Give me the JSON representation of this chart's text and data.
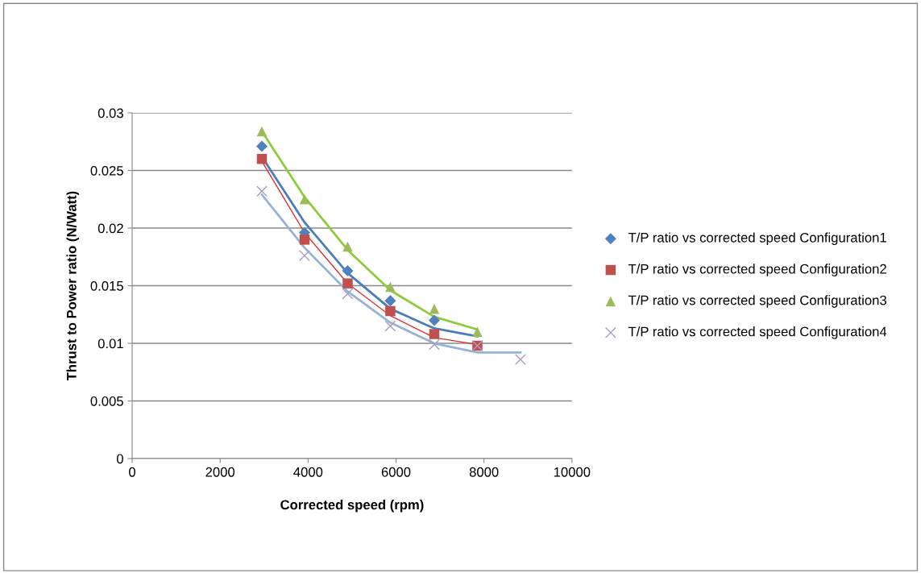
{
  "chart_data": {
    "type": "scatter",
    "xlabel": "Corrected speed (rpm)",
    "ylabel": "Thrust to Power ratio (N/Watt)",
    "x": [
      2950,
      3920,
      4900,
      5870,
      6870,
      7850
    ],
    "xlim": [
      0,
      10000
    ],
    "xticks": [
      0,
      2000,
      4000,
      6000,
      8000,
      10000
    ],
    "ylim": [
      0,
      0.03
    ],
    "yticks": [
      0,
      0.005,
      0.01,
      0.015,
      0.02,
      0.025,
      0.03
    ],
    "grid": "y",
    "legend": "right",
    "series": [
      {
        "name": "T/P ratio vs corrected speed Configuration1",
        "color": "#4f81bd",
        "marker": "diamond",
        "values": [
          0.0271,
          0.0196,
          0.0163,
          0.0137,
          0.012,
          null
        ]
      },
      {
        "name": "T/P ratio vs corrected speed Configuration2",
        "color": "#c0504d",
        "marker": "square",
        "values": [
          0.026,
          0.019,
          0.0152,
          0.0128,
          0.0108,
          0.0098
        ]
      },
      {
        "name": "T/P ratio vs corrected speed Configuration3",
        "color": "#9bbb59",
        "marker": "triangle",
        "values": [
          0.0284,
          0.0225,
          0.0184,
          0.0149,
          0.013,
          0.011
        ]
      },
      {
        "name": "T/P ratio vs corrected speed Configuration4",
        "color": "#a99bc6",
        "marker": "cross",
        "x": [
          2950,
          3920,
          4900,
          5870,
          6870,
          7850,
          8830
        ],
        "values": [
          0.0232,
          0.0176,
          0.0143,
          0.0115,
          0.0099,
          0.0098,
          0.0086
        ]
      },
      {
        "type": "line",
        "color": "#4a7ebb",
        "marker": "none",
        "values": [
          0.0262,
          0.0205,
          0.0161,
          0.013,
          0.0113,
          0.0106
        ]
      },
      {
        "type": "line",
        "color": "#e03030",
        "marker": "none",
        "values": [
          0.0258,
          0.0196,
          0.0152,
          0.0124,
          0.0105,
          0.0099
        ]
      },
      {
        "type": "line",
        "color": "#8ccc3c",
        "marker": "none",
        "values": [
          0.0284,
          0.0227,
          0.0181,
          0.0146,
          0.0123,
          0.0112
        ]
      },
      {
        "type": "line",
        "color": "#95b3d7",
        "marker": "none",
        "x": [
          2950,
          3920,
          4900,
          5870,
          6870,
          7850,
          8830
        ],
        "values": [
          0.0229,
          0.0183,
          0.0145,
          0.0118,
          0.01,
          0.0092,
          0.0092
        ]
      }
    ]
  }
}
